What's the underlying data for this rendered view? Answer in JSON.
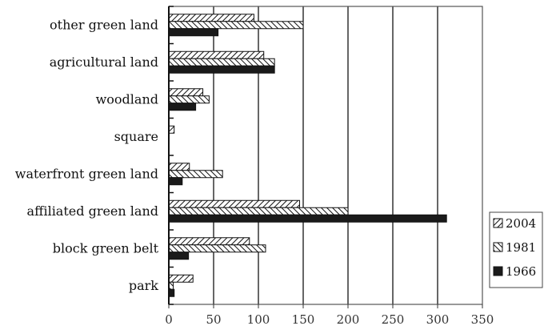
{
  "chart_data": {
    "type": "bar",
    "orientation": "horizontal",
    "categories": [
      "park",
      "block green belt",
      "affiliated green land",
      "waterfront green land",
      "square",
      "woodland",
      "agricultural land",
      "other green land"
    ],
    "series": [
      {
        "name": "2004",
        "values": [
          27,
          90,
          146,
          23,
          6,
          38,
          106,
          95
        ],
        "pattern": "diagonal-forward"
      },
      {
        "name": "1981",
        "values": [
          5,
          108,
          200,
          60,
          0,
          45,
          118,
          150
        ],
        "pattern": "diagonal-back"
      },
      {
        "name": "1966",
        "values": [
          6,
          22,
          310,
          15,
          0,
          30,
          118,
          55
        ],
        "pattern": "solid"
      }
    ],
    "xlim": [
      0,
      350
    ],
    "xticks": [
      "0",
      "50",
      "100",
      "150",
      "200",
      "250",
      "300",
      "350"
    ],
    "grid": "vertical",
    "legend": "right",
    "colors": {
      "bar_fill": "#ffffff",
      "bar_stroke": "#111111",
      "solid": "#1a1a1a",
      "grid": "#000000"
    }
  }
}
